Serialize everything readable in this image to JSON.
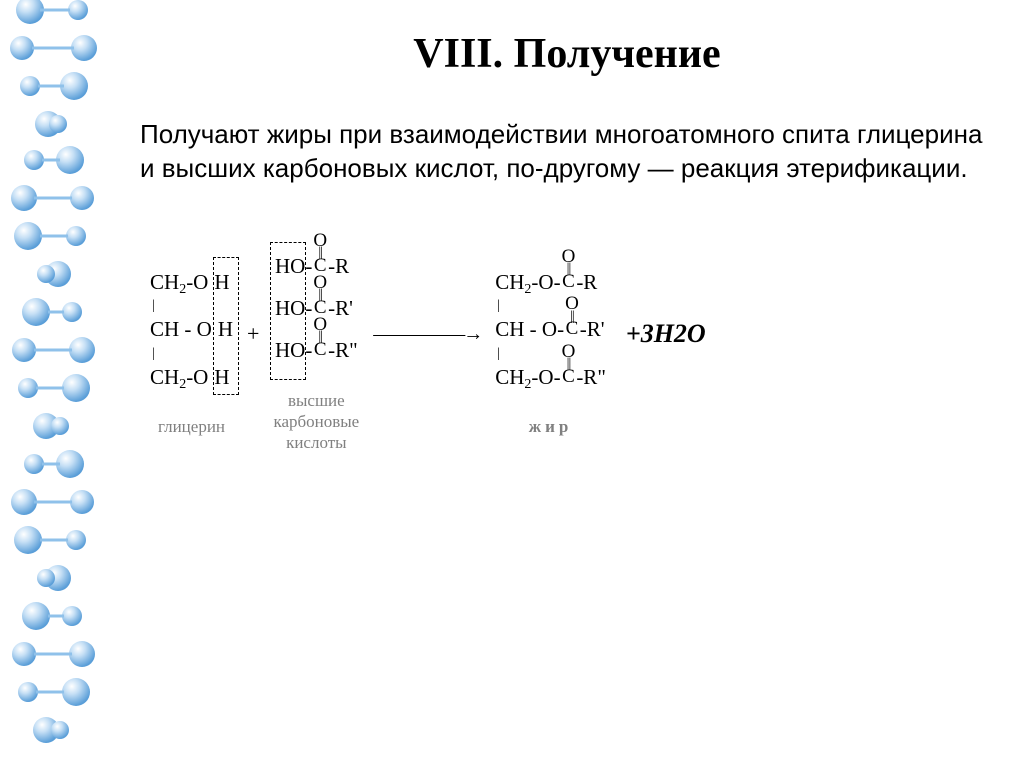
{
  "title": "VIII. Получение",
  "description": "Получают жиры при взаимодействии многоатомного спита глицерина и высших карбоновых кислот, по-другому — реакция этерификации.",
  "equation": {
    "glycerol": {
      "label": "глицерин",
      "rows": [
        "CH₂-O",
        "CH -O",
        "CH₂-O"
      ],
      "box_col": "H"
    },
    "acids": {
      "label": "высшие\nкарбоновые\nкислоты",
      "box_col": "HO",
      "r_groups": [
        "R",
        "R'",
        "R\""
      ]
    },
    "fat": {
      "label": "жир",
      "rows_prefix": [
        "CH₂-O-",
        "CH -O-",
        "CH₂-O-"
      ],
      "r_groups": [
        "R",
        "R'",
        "R\""
      ]
    },
    "water": "+3H2O",
    "plus": "+",
    "arrow": "―――――→"
  },
  "colors": {
    "text": "#000000",
    "label_gray": "#808080",
    "dna_light": "#c5dff5",
    "dna_mid": "#8fc1ea",
    "dna_dark": "#5a9ed8",
    "background": "#ffffff"
  },
  "dna": {
    "sphere_count": 22
  }
}
